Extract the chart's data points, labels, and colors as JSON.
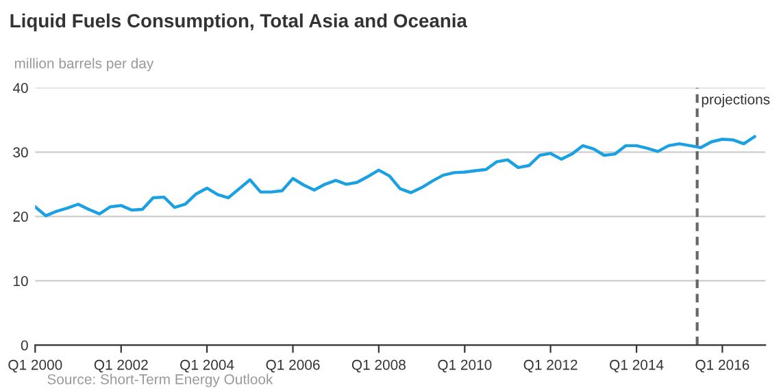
{
  "chart_data": {
    "type": "line",
    "title": "Liquid Fuels Consumption, Total Asia and Oceania",
    "ylabel": "million barrels per day",
    "x": [
      "2000-01",
      "2000-04",
      "2000-07",
      "2000-10",
      "2001-01",
      "2001-04",
      "2001-07",
      "2001-10",
      "2002-01",
      "2002-04",
      "2002-07",
      "2002-10",
      "2003-01",
      "2003-04",
      "2003-07",
      "2003-10",
      "2004-01",
      "2004-04",
      "2004-07",
      "2004-10",
      "2005-01",
      "2005-04",
      "2005-07",
      "2005-10",
      "2006-01",
      "2006-04",
      "2006-07",
      "2006-10",
      "2007-01",
      "2007-04",
      "2007-07",
      "2007-10",
      "2008-01",
      "2008-04",
      "2008-07",
      "2008-10",
      "2009-01",
      "2009-04",
      "2009-07",
      "2009-10",
      "2010-01",
      "2010-04",
      "2010-07",
      "2010-10",
      "2011-01",
      "2011-04",
      "2011-07",
      "2011-10",
      "2012-01",
      "2012-04",
      "2012-07",
      "2012-10",
      "2013-01",
      "2013-04",
      "2013-07",
      "2013-10",
      "2014-01",
      "2014-04",
      "2014-07",
      "2014-10",
      "2015-01",
      "2015-04",
      "2015-07",
      "2015-10",
      "2016-01",
      "2016-04",
      "2016-07",
      "2016-10"
    ],
    "series": [
      {
        "color": "#1ba1e2",
        "values": [
          21.5,
          20.1,
          20.8,
          21.3,
          21.9,
          21.1,
          20.4,
          21.5,
          21.7,
          21.0,
          21.1,
          22.9,
          23.0,
          21.4,
          21.9,
          23.5,
          24.4,
          23.4,
          22.9,
          24.3,
          25.7,
          23.8,
          23.8,
          24.0,
          25.9,
          24.9,
          24.1,
          25.0,
          25.6,
          25.0,
          25.3,
          26.2,
          27.2,
          26.3,
          24.3,
          23.7,
          24.5,
          25.5,
          26.4,
          26.8,
          26.9,
          27.1,
          27.3,
          28.5,
          28.8,
          27.6,
          27.9,
          29.5,
          29.8,
          28.9,
          29.7,
          31.0,
          30.5,
          29.5,
          29.7,
          31.0,
          31.0,
          30.6,
          30.1,
          31.0,
          31.3,
          31.0,
          30.7,
          31.6,
          32.0,
          31.9,
          31.3,
          32.4
        ]
      }
    ],
    "xlim": [
      "2000-01",
      "2017-01"
    ],
    "xticks": [
      {
        "value": "2000-01",
        "label": "Q1 2000"
      },
      {
        "value": "2002-01",
        "label": "Q1 2002"
      },
      {
        "value": "2004-01",
        "label": "Q1 2004"
      },
      {
        "value": "2006-01",
        "label": "Q1 2006"
      },
      {
        "value": "2008-01",
        "label": "Q1 2008"
      },
      {
        "value": "2010-01",
        "label": "Q1 2010"
      },
      {
        "value": "2012-01",
        "label": "Q1 2012"
      },
      {
        "value": "2014-01",
        "label": "Q1 2014"
      },
      {
        "value": "2016-01",
        "label": "Q1 2016"
      }
    ],
    "ylim": [
      0,
      40
    ],
    "yticks": [
      0,
      10,
      20,
      30,
      40
    ],
    "grid": "y",
    "marker": "none",
    "line_style": "solid",
    "ref_lines": [
      {
        "axis": "x",
        "value": "2015-06",
        "label": "projections",
        "color": "#666666",
        "line_style": "dashed"
      }
    ],
    "annotations": [
      "Source: Short-Term Energy Outlook"
    ]
  }
}
